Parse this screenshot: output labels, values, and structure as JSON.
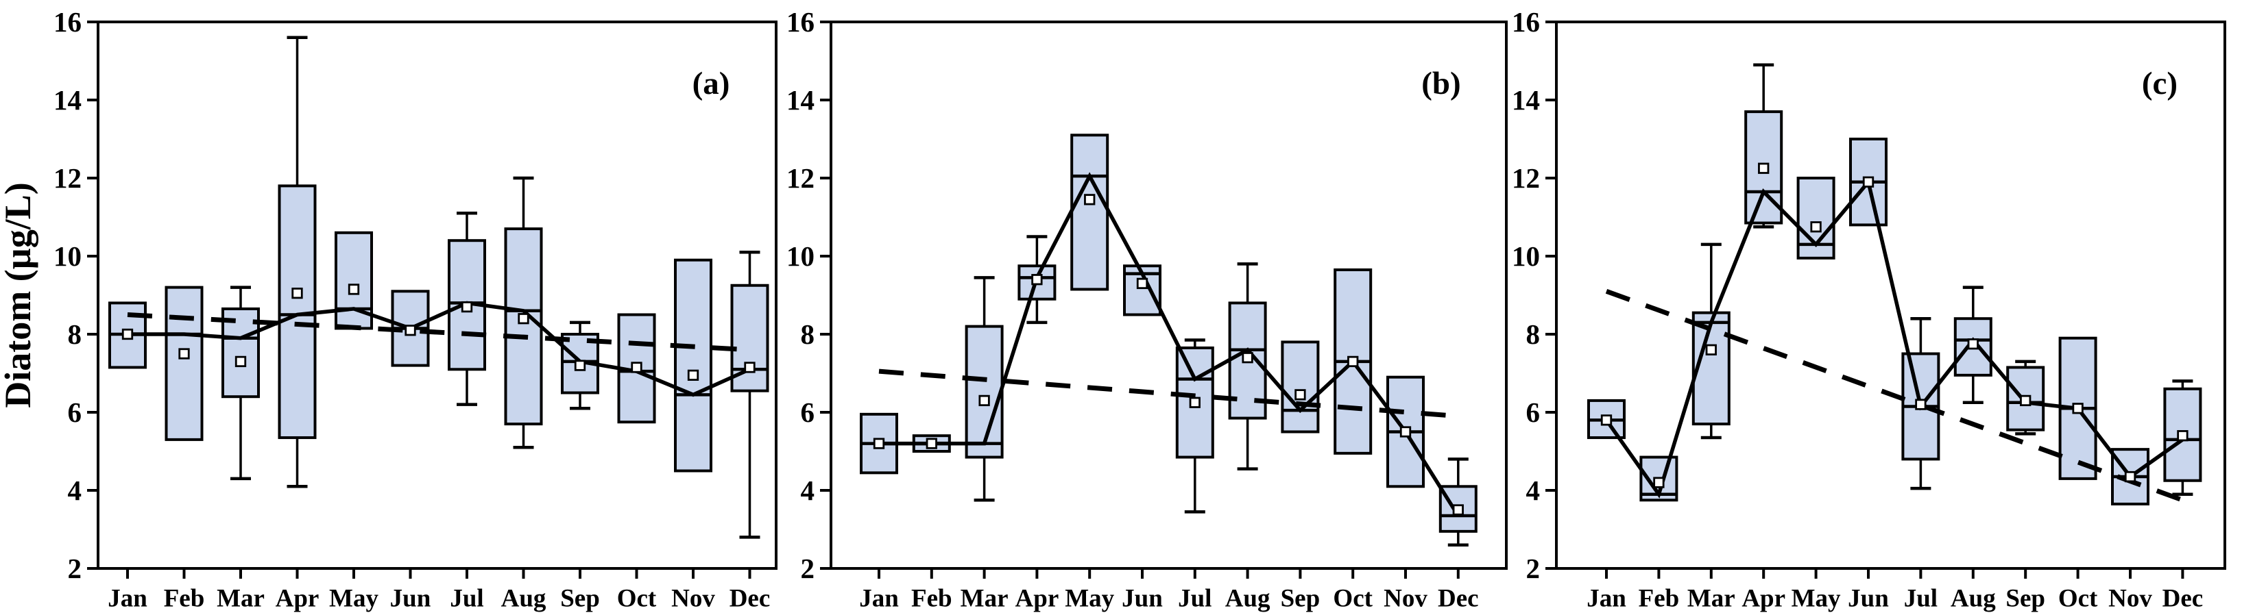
{
  "figure": {
    "y_axis_title": "Diatom (µg/L)",
    "months": [
      "Jan",
      "Feb",
      "Mar",
      "Apr",
      "May",
      "Jun",
      "Jul",
      "Aug",
      "Sep",
      "Oct",
      "Nov",
      "Dec"
    ],
    "y_ticks": [
      2,
      4,
      6,
      8,
      10,
      12,
      14,
      16
    ],
    "ylim": [
      2,
      16
    ],
    "colors": {
      "box_fill": "#c9d6ed",
      "line": "#000000",
      "background": "#ffffff",
      "mean_marker_fill": "#ffffff"
    }
  },
  "chart_data": [
    {
      "type": "box",
      "panel_label": "(a)",
      "ylabel": "Diatom (µg/L)",
      "ylim": [
        2,
        16
      ],
      "categories": [
        "Jan",
        "Feb",
        "Mar",
        "Apr",
        "May",
        "Jun",
        "Jul",
        "Aug",
        "Sep",
        "Oct",
        "Nov",
        "Dec"
      ],
      "boxes": [
        {
          "month": "Jan",
          "q1": 7.15,
          "median": 8.0,
          "q3": 8.8,
          "mean": 8.0,
          "whisker_low": null,
          "whisker_high": null
        },
        {
          "month": "Feb",
          "q1": 5.3,
          "median": 8.0,
          "q3": 9.2,
          "mean": 7.5,
          "whisker_low": null,
          "whisker_high": null
        },
        {
          "month": "Mar",
          "q1": 6.4,
          "median": 7.9,
          "q3": 8.65,
          "mean": 7.3,
          "whisker_low": 4.3,
          "whisker_high": 9.2
        },
        {
          "month": "Apr",
          "q1": 5.35,
          "median": 8.5,
          "q3": 11.8,
          "mean": 9.05,
          "whisker_low": 4.1,
          "whisker_high": 15.6
        },
        {
          "month": "May",
          "q1": 8.15,
          "median": 8.65,
          "q3": 10.6,
          "mean": 9.15,
          "whisker_low": null,
          "whisker_high": null
        },
        {
          "month": "Jun",
          "q1": 7.2,
          "median": 8.15,
          "q3": 9.1,
          "mean": 8.1,
          "whisker_low": null,
          "whisker_high": null
        },
        {
          "month": "Jul",
          "q1": 7.1,
          "median": 8.8,
          "q3": 10.4,
          "mean": 8.7,
          "whisker_low": 6.2,
          "whisker_high": 11.1
        },
        {
          "month": "Aug",
          "q1": 5.7,
          "median": 8.6,
          "q3": 10.7,
          "mean": 8.4,
          "whisker_low": 5.1,
          "whisker_high": 12.0
        },
        {
          "month": "Sep",
          "q1": 6.5,
          "median": 7.3,
          "q3": 8.0,
          "mean": 7.2,
          "whisker_low": 6.1,
          "whisker_high": 8.3
        },
        {
          "month": "Oct",
          "q1": 5.75,
          "median": 7.05,
          "q3": 8.5,
          "mean": 7.15,
          "whisker_low": null,
          "whisker_high": null
        },
        {
          "month": "Nov",
          "q1": 4.5,
          "median": 6.45,
          "q3": 9.9,
          "mean": 6.95,
          "whisker_low": null,
          "whisker_high": null
        },
        {
          "month": "Dec",
          "q1": 6.55,
          "median": 7.1,
          "q3": 9.25,
          "mean": 7.15,
          "whisker_low": 2.8,
          "whisker_high": 10.1
        }
      ],
      "solid_line_connects": "medians",
      "dashed_trend": {
        "start_value": 8.5,
        "end_value": 7.6
      }
    },
    {
      "type": "box",
      "panel_label": "(b)",
      "ylim": [
        2,
        16
      ],
      "categories": [
        "Jan",
        "Feb",
        "Mar",
        "Apr",
        "May",
        "Jun",
        "Jul",
        "Aug",
        "Sep",
        "Oct",
        "Nov",
        "Dec"
      ],
      "boxes": [
        {
          "month": "Jan",
          "q1": 4.45,
          "median": 5.2,
          "q3": 5.95,
          "mean": 5.2,
          "whisker_low": null,
          "whisker_high": null
        },
        {
          "month": "Feb",
          "q1": 5.0,
          "median": 5.2,
          "q3": 5.4,
          "mean": 5.2,
          "whisker_low": null,
          "whisker_high": null
        },
        {
          "month": "Mar",
          "q1": 4.85,
          "median": 5.2,
          "q3": 8.2,
          "mean": 6.3,
          "whisker_low": 3.75,
          "whisker_high": 9.45
        },
        {
          "month": "Apr",
          "q1": 8.9,
          "median": 9.45,
          "q3": 9.75,
          "mean": 9.4,
          "whisker_low": 8.3,
          "whisker_high": 10.5
        },
        {
          "month": "May",
          "q1": 9.15,
          "median": 12.05,
          "q3": 13.1,
          "mean": 11.45,
          "whisker_low": null,
          "whisker_high": null
        },
        {
          "month": "Jun",
          "q1": 8.5,
          "median": 9.55,
          "q3": 9.75,
          "mean": 9.3,
          "whisker_low": null,
          "whisker_high": null
        },
        {
          "month": "Jul",
          "q1": 4.85,
          "median": 6.85,
          "q3": 7.65,
          "mean": 6.25,
          "whisker_low": 3.45,
          "whisker_high": 7.85
        },
        {
          "month": "Aug",
          "q1": 5.85,
          "median": 7.6,
          "q3": 8.8,
          "mean": 7.4,
          "whisker_low": 4.55,
          "whisker_high": 9.8
        },
        {
          "month": "Sep",
          "q1": 5.5,
          "median": 6.05,
          "q3": 7.8,
          "mean": 6.45,
          "whisker_low": null,
          "whisker_high": null
        },
        {
          "month": "Oct",
          "q1": 4.95,
          "median": 7.3,
          "q3": 9.65,
          "mean": 7.3,
          "whisker_low": null,
          "whisker_high": null
        },
        {
          "month": "Nov",
          "q1": 4.1,
          "median": 5.5,
          "q3": 6.9,
          "mean": 5.5,
          "whisker_low": null,
          "whisker_high": null
        },
        {
          "month": "Dec",
          "q1": 2.95,
          "median": 3.35,
          "q3": 4.1,
          "mean": 3.5,
          "whisker_low": 2.6,
          "whisker_high": 4.8
        }
      ],
      "solid_line_connects": "medians",
      "dashed_trend": {
        "start_value": 7.05,
        "end_value": 5.9
      }
    },
    {
      "type": "box",
      "panel_label": "(c)",
      "ylim": [
        2,
        16
      ],
      "categories": [
        "Jan",
        "Feb",
        "Mar",
        "Apr",
        "May",
        "Jun",
        "Jul",
        "Aug",
        "Sep",
        "Oct",
        "Nov",
        "Dec"
      ],
      "boxes": [
        {
          "month": "Jan",
          "q1": 5.35,
          "median": 5.8,
          "q3": 6.3,
          "mean": 5.8,
          "whisker_low": null,
          "whisker_high": null
        },
        {
          "month": "Feb",
          "q1": 3.75,
          "median": 3.9,
          "q3": 4.85,
          "mean": 4.2,
          "whisker_low": null,
          "whisker_high": null
        },
        {
          "month": "Mar",
          "q1": 5.7,
          "median": 8.3,
          "q3": 8.55,
          "mean": 7.6,
          "whisker_low": 5.35,
          "whisker_high": 10.3
        },
        {
          "month": "Apr",
          "q1": 10.85,
          "median": 11.65,
          "q3": 13.7,
          "mean": 12.25,
          "whisker_low": 10.75,
          "whisker_high": 14.9
        },
        {
          "month": "May",
          "q1": 9.95,
          "median": 10.3,
          "q3": 12.0,
          "mean": 10.75,
          "whisker_low": null,
          "whisker_high": null
        },
        {
          "month": "Jun",
          "q1": 10.8,
          "median": 11.9,
          "q3": 13.0,
          "mean": 11.9,
          "whisker_low": null,
          "whisker_high": null
        },
        {
          "month": "Jul",
          "q1": 4.8,
          "median": 6.15,
          "q3": 7.5,
          "mean": 6.2,
          "whisker_low": 4.05,
          "whisker_high": 8.4
        },
        {
          "month": "Aug",
          "q1": 6.95,
          "median": 7.85,
          "q3": 8.4,
          "mean": 7.75,
          "whisker_low": 6.25,
          "whisker_high": 9.2
        },
        {
          "month": "Sep",
          "q1": 5.55,
          "median": 6.25,
          "q3": 7.15,
          "mean": 6.3,
          "whisker_low": 5.45,
          "whisker_high": 7.3
        },
        {
          "month": "Oct",
          "q1": 4.3,
          "median": 6.1,
          "q3": 7.9,
          "mean": 6.1,
          "whisker_low": null,
          "whisker_high": null
        },
        {
          "month": "Nov",
          "q1": 3.65,
          "median": 4.35,
          "q3": 5.05,
          "mean": 4.35,
          "whisker_low": null,
          "whisker_high": null
        },
        {
          "month": "Dec",
          "q1": 4.25,
          "median": 5.3,
          "q3": 6.6,
          "mean": 5.4,
          "whisker_low": 3.9,
          "whisker_high": 6.8
        }
      ],
      "solid_line_connects": "medians",
      "dashed_trend": {
        "start_value": 9.1,
        "end_value": 3.75
      }
    }
  ]
}
